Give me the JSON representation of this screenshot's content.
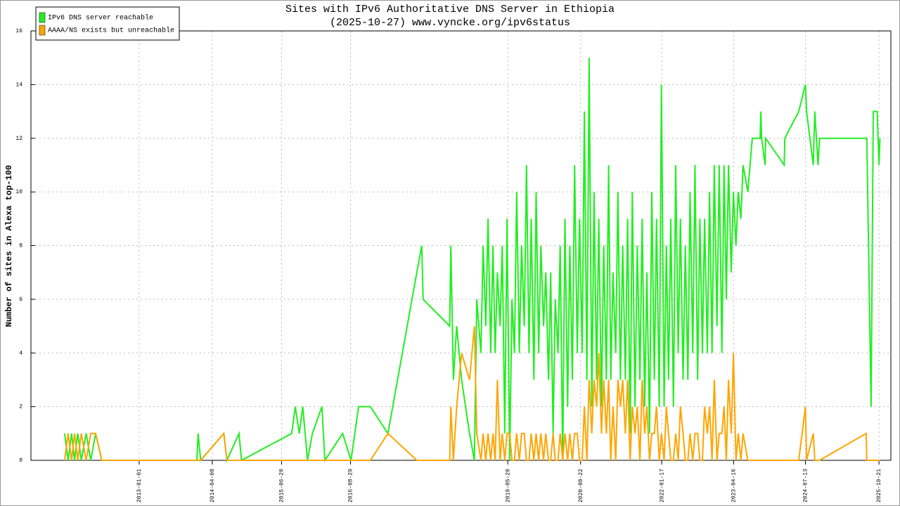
{
  "chart_data": {
    "type": "line",
    "title": "Sites with IPv6 Authoritative DNS Server in Ethiopia",
    "subtitle": "(2025-10-27) www.vyncke.org/ipv6status",
    "y_label": "Number of sites in Alexa top-100",
    "legend_position": "top-left",
    "grid": true,
    "xlim": [
      "2011-02-17",
      "2026-01-04"
    ],
    "xticks": [
      "2013-01-01",
      "2014-04-08",
      "2015-06-20",
      "2016-08-29",
      "2019-05-20",
      "2020-08-22",
      "2022-01-17",
      "2023-04-16",
      "2024-07-13",
      "2025-10-21"
    ],
    "ylim": [
      0,
      16
    ],
    "yticks": [
      0,
      2,
      4,
      6,
      8,
      10,
      12,
      14,
      16
    ],
    "x": [
      "2011-09-18",
      "2011-10-10",
      "2011-11-01",
      "2011-11-20",
      "2011-12-10",
      "2012-01-01",
      "2012-02-01",
      "2012-03-01",
      "2012-04-01",
      "2012-05-10",
      "2014-01-01",
      "2014-01-09",
      "2014-01-25",
      "2014-06-20",
      "2014-07-10",
      "2014-09-24",
      "2014-10-10",
      "2015-08-23",
      "2015-09-15",
      "2015-10-10",
      "2015-11-01",
      "2015-12-01",
      "2016-01-01",
      "2016-03-01",
      "2016-03-20",
      "2016-07-10",
      "2016-09-01",
      "2016-10-19",
      "2017-01-01",
      "2017-04-22",
      "2017-10-22",
      "2017-11-22",
      "2017-12-01",
      "2018-05-18",
      "2018-05-25",
      "2018-06-10",
      "2018-07-01",
      "2018-08-01",
      "2018-09-20",
      "2018-10-21",
      "2018-11-05",
      "2018-12-01",
      "2018-12-15",
      "2019-01-01",
      "2019-01-15",
      "2019-02-01",
      "2019-02-15",
      "2019-03-01",
      "2019-03-15",
      "2019-04-01",
      "2019-04-15",
      "2019-05-01",
      "2019-05-15",
      "2019-06-01",
      "2019-06-15",
      "2019-07-01",
      "2019-07-15",
      "2019-08-01",
      "2019-08-15",
      "2019-09-01",
      "2019-09-15",
      "2019-10-01",
      "2019-10-15",
      "2019-11-01",
      "2019-11-15",
      "2019-12-01",
      "2019-12-15",
      "2020-01-01",
      "2020-01-15",
      "2020-02-01",
      "2020-02-15",
      "2020-03-01",
      "2020-03-15",
      "2020-04-01",
      "2020-04-15",
      "2020-05-01",
      "2020-05-15",
      "2020-06-01",
      "2020-06-15",
      "2020-07-01",
      "2020-07-15",
      "2020-08-01",
      "2020-08-15",
      "2020-09-01",
      "2020-09-15",
      "2020-10-01",
      "2020-10-15",
      "2020-11-01",
      "2020-11-15",
      "2020-12-01",
      "2020-12-15",
      "2021-01-01",
      "2021-01-15",
      "2021-02-01",
      "2021-02-15",
      "2021-03-01",
      "2021-03-15",
      "2021-04-01",
      "2021-04-15",
      "2021-05-01",
      "2021-05-15",
      "2021-06-01",
      "2021-06-15",
      "2021-07-01",
      "2021-07-15",
      "2021-08-01",
      "2021-08-15",
      "2021-09-01",
      "2021-09-15",
      "2021-10-01",
      "2021-10-15",
      "2021-11-01",
      "2021-11-15",
      "2021-12-01",
      "2021-12-15",
      "2022-01-01",
      "2022-01-15",
      "2022-02-01",
      "2022-02-15",
      "2022-03-01",
      "2022-03-15",
      "2022-04-01",
      "2022-04-15",
      "2022-05-01",
      "2022-05-15",
      "2022-06-01",
      "2022-06-15",
      "2022-07-01",
      "2022-07-15",
      "2022-08-01",
      "2022-08-15",
      "2022-09-01",
      "2022-09-15",
      "2022-10-01",
      "2022-10-15",
      "2022-11-01",
      "2022-11-15",
      "2022-12-01",
      "2022-12-15",
      "2023-01-01",
      "2023-01-15",
      "2023-02-01",
      "2023-02-15",
      "2023-03-01",
      "2023-03-15",
      "2023-04-01",
      "2023-04-15",
      "2023-05-01",
      "2023-05-15",
      "2023-06-01",
      "2023-06-15",
      "2023-07-15",
      "2023-08-12",
      "2023-10-01",
      "2023-10-05",
      "2023-10-10",
      "2023-11-01",
      "2023-11-05",
      "2024-03-01",
      "2024-03-05",
      "2024-06-01",
      "2024-07-13",
      "2024-07-20",
      "2024-09-01",
      "2024-09-10",
      "2024-10-01",
      "2024-10-10",
      "2025-08-01",
      "2025-08-05",
      "2025-09-01",
      "2025-09-15",
      "2025-10-10",
      "2025-10-21",
      "2025-10-27"
    ],
    "series": [
      {
        "name": "IPv6 DNS server reachable",
        "color": "#22ee22",
        "values": [
          1,
          0,
          1,
          0,
          1,
          0,
          1,
          0,
          1,
          0,
          0,
          1,
          0,
          1,
          0,
          1,
          0,
          1,
          2,
          1,
          2,
          0,
          1,
          2,
          0,
          1,
          0,
          2,
          2,
          1,
          7,
          8,
          6,
          5,
          8,
          3,
          5,
          3,
          1,
          0,
          6,
          4,
          8,
          5,
          9,
          4,
          8,
          4,
          7,
          5,
          8,
          1,
          9,
          0,
          6,
          4,
          10,
          4,
          8,
          5,
          11,
          4,
          9,
          3,
          10,
          4,
          8,
          5,
          7,
          3,
          7,
          1,
          6,
          4,
          8,
          0,
          9,
          2,
          8,
          3,
          11,
          4,
          9,
          4,
          13,
          3,
          15,
          2,
          10,
          3,
          9,
          2,
          8,
          3,
          11,
          3,
          7,
          4,
          10,
          3,
          8,
          3,
          9,
          1,
          10,
          2,
          8,
          3,
          9,
          2,
          7,
          1,
          10,
          3,
          9,
          2,
          14,
          2,
          8,
          3,
          9,
          2,
          11,
          4,
          9,
          3,
          8,
          3,
          10,
          4,
          11,
          3,
          9,
          4,
          9,
          4,
          10,
          4,
          11,
          5,
          11,
          4,
          11,
          6,
          11,
          7,
          10,
          8,
          10,
          9,
          11,
          10,
          12,
          12,
          13,
          12,
          11,
          12,
          11,
          12,
          13,
          14,
          13,
          11,
          13,
          11,
          12,
          12,
          12,
          2,
          13,
          13,
          11,
          12
        ]
      },
      {
        "name": "AAAA/NS exists but unreachable",
        "color": "#ffa500",
        "values": [
          0,
          1,
          0,
          1,
          0,
          1,
          0,
          1,
          1,
          0,
          0,
          0,
          0,
          1,
          0,
          0,
          0,
          0,
          0,
          0,
          0,
          0,
          0,
          0,
          0,
          0,
          0,
          0,
          0,
          1,
          0,
          0,
          0,
          0,
          2,
          0,
          2,
          4,
          3,
          5,
          1,
          0,
          1,
          0,
          1,
          0,
          1,
          0,
          3,
          0,
          1,
          0,
          1,
          1,
          0,
          0,
          1,
          0,
          1,
          1,
          0,
          0,
          1,
          0,
          1,
          0,
          1,
          0,
          1,
          0,
          0,
          1,
          0,
          0,
          1,
          0,
          1,
          0,
          1,
          0,
          1,
          1,
          0,
          0,
          2,
          0,
          3,
          1,
          3,
          2,
          4,
          1,
          3,
          1,
          3,
          0,
          2,
          0,
          3,
          2,
          3,
          1,
          3,
          0,
          2,
          1,
          2,
          0,
          3,
          1,
          2,
          0,
          1,
          1,
          2,
          0,
          1,
          0,
          2,
          1,
          0,
          0,
          1,
          0,
          2,
          1,
          0,
          0,
          1,
          0,
          1,
          1,
          0,
          0,
          2,
          1,
          2,
          0,
          3,
          0,
          1,
          1,
          2,
          0,
          3,
          1,
          4,
          0,
          1,
          0,
          1,
          0,
          0,
          0,
          0,
          0,
          0,
          0,
          0,
          0,
          0,
          2,
          0,
          1,
          0,
          0,
          0,
          1,
          0,
          0,
          0,
          0,
          0,
          0
        ]
      }
    ]
  }
}
